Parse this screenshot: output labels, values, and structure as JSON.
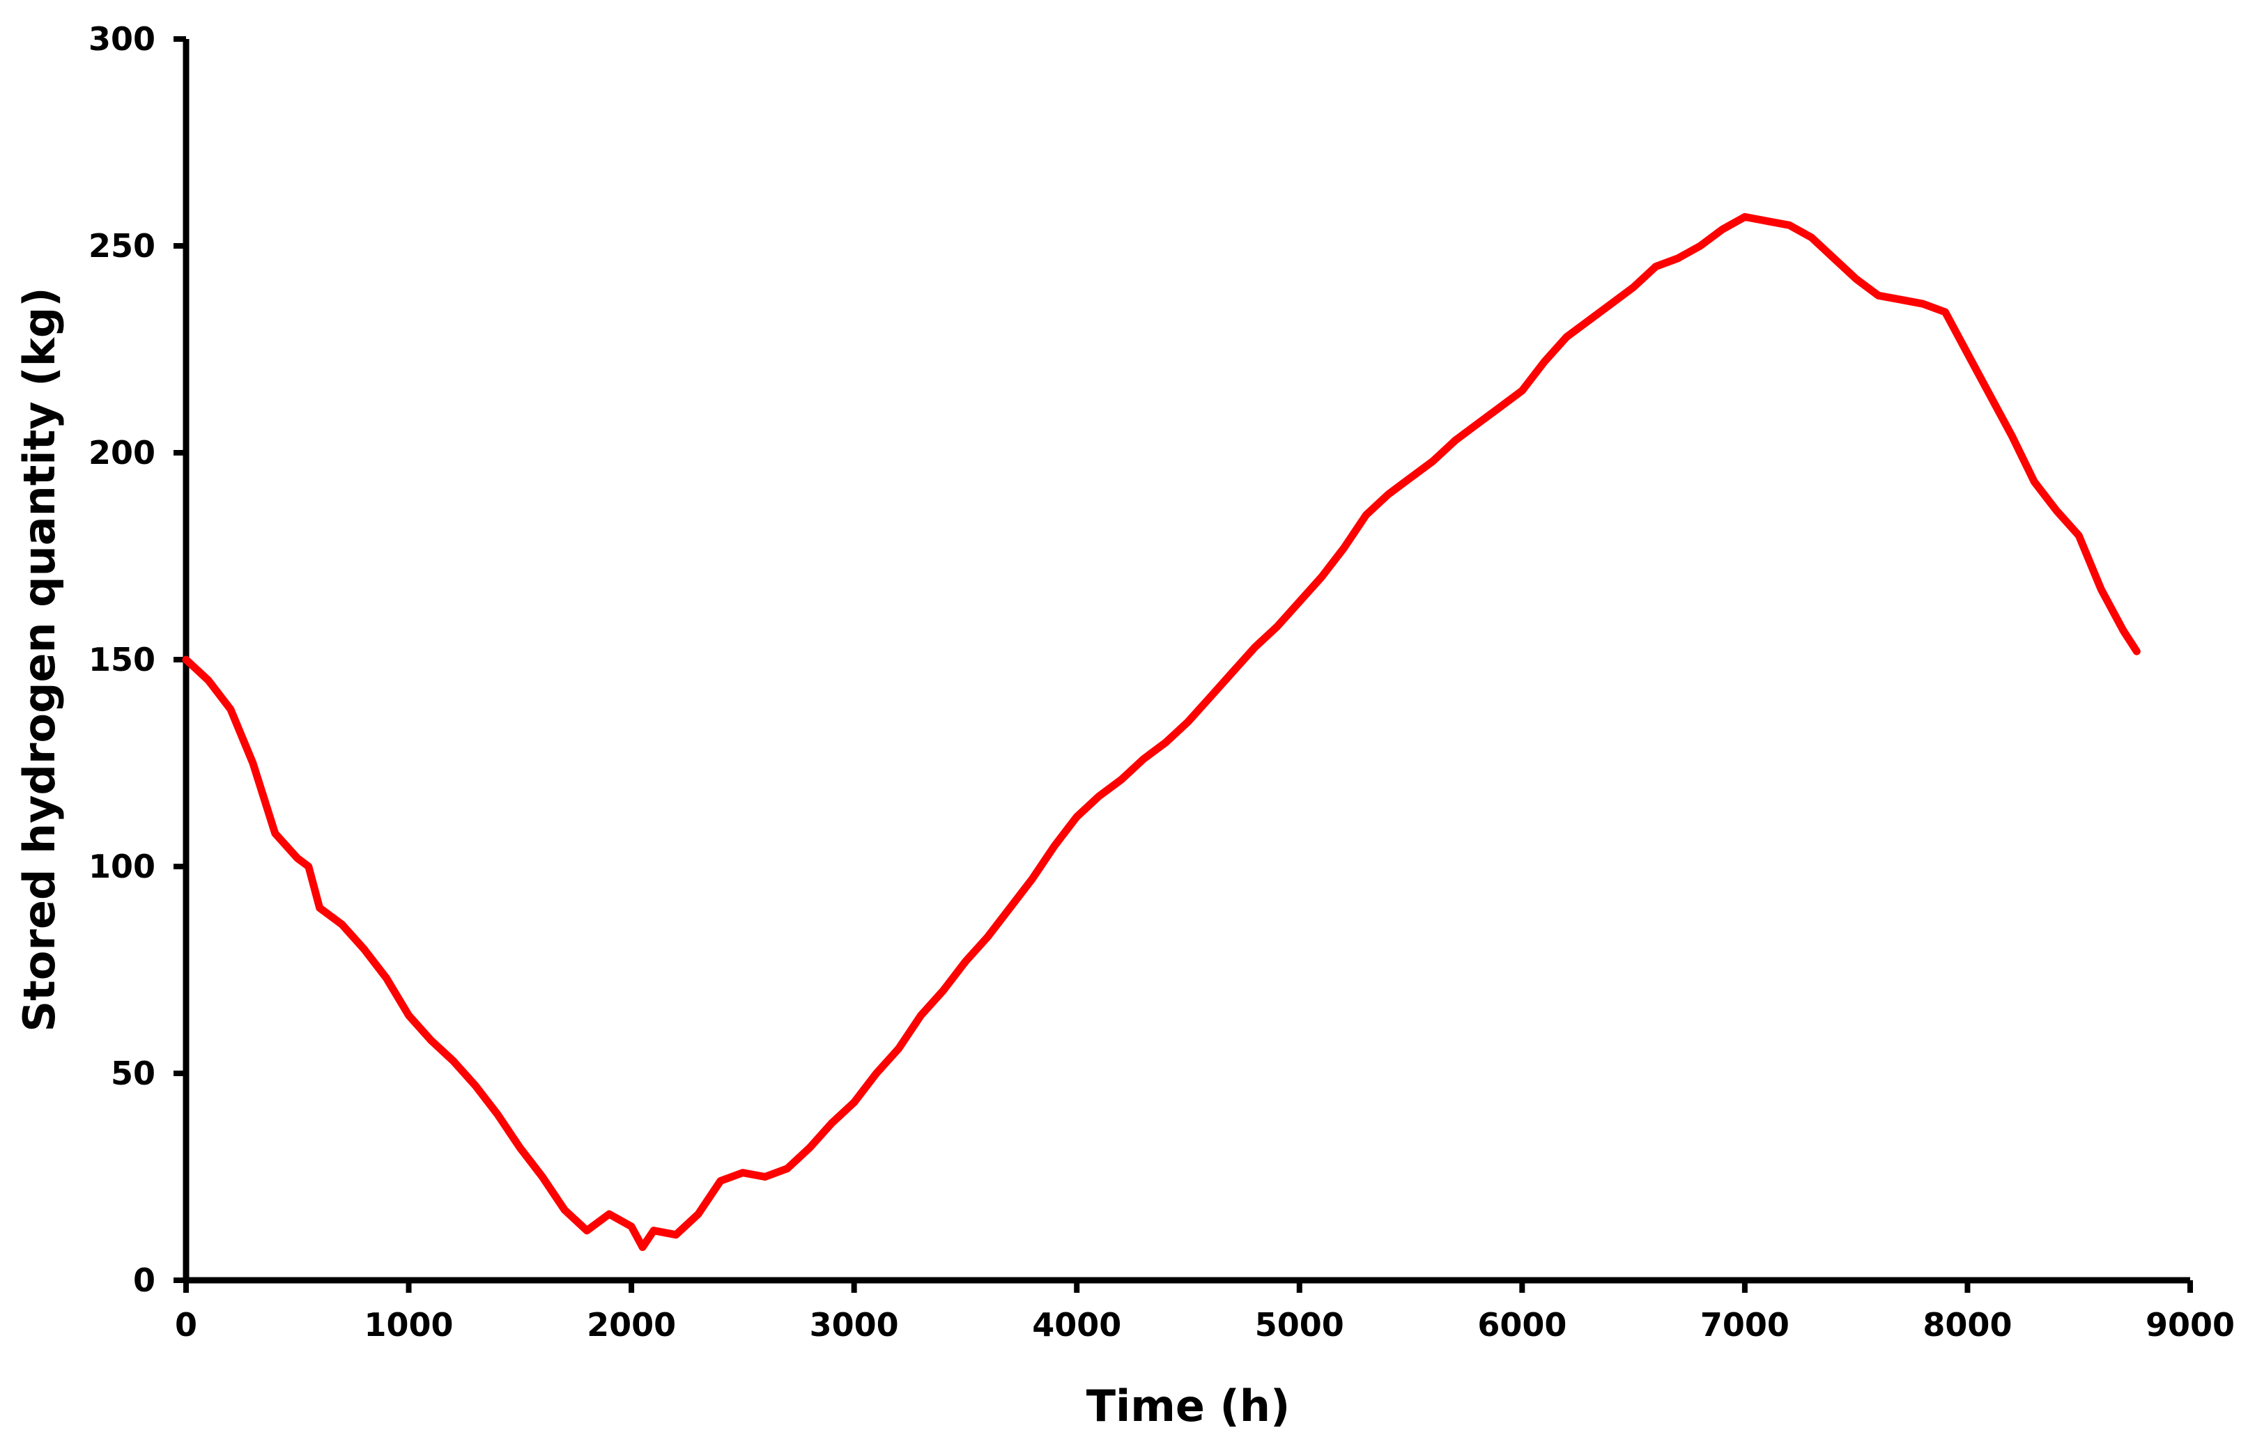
{
  "chart_data": {
    "type": "line",
    "title": "",
    "xlabel": "Time (h)",
    "ylabel": "Stored hydrogen quantity (kg)",
    "xlim": [
      0,
      9000
    ],
    "ylim": [
      0,
      300
    ],
    "x_ticks": [
      0,
      1000,
      2000,
      3000,
      4000,
      5000,
      6000,
      7000,
      8000,
      9000
    ],
    "y_ticks": [
      0,
      50,
      100,
      150,
      200,
      250,
      300
    ],
    "x_tick_labels": [
      "0",
      "1000",
      "2000",
      "3000",
      "4000",
      "5000",
      "6000",
      "7000",
      "8000",
      "9000"
    ],
    "y_tick_labels": [
      "0",
      "50",
      "100",
      "150",
      "200",
      "250",
      "300"
    ],
    "grid": false,
    "legend": "none",
    "series": [
      {
        "color": "#ff0000",
        "points": [
          [
            0,
            150
          ],
          [
            100,
            145
          ],
          [
            200,
            138
          ],
          [
            300,
            125
          ],
          [
            400,
            108
          ],
          [
            500,
            102
          ],
          [
            550,
            100
          ],
          [
            600,
            90
          ],
          [
            700,
            86
          ],
          [
            800,
            80
          ],
          [
            900,
            73
          ],
          [
            1000,
            64
          ],
          [
            1100,
            58
          ],
          [
            1200,
            53
          ],
          [
            1300,
            47
          ],
          [
            1400,
            40
          ],
          [
            1500,
            32
          ],
          [
            1600,
            25
          ],
          [
            1700,
            17
          ],
          [
            1800,
            12
          ],
          [
            1900,
            16
          ],
          [
            2000,
            13
          ],
          [
            2050,
            8
          ],
          [
            2100,
            12
          ],
          [
            2200,
            11
          ],
          [
            2300,
            16
          ],
          [
            2400,
            24
          ],
          [
            2500,
            26
          ],
          [
            2600,
            25
          ],
          [
            2700,
            27
          ],
          [
            2800,
            32
          ],
          [
            2900,
            38
          ],
          [
            3000,
            43
          ],
          [
            3100,
            50
          ],
          [
            3200,
            56
          ],
          [
            3300,
            64
          ],
          [
            3400,
            70
          ],
          [
            3500,
            77
          ],
          [
            3600,
            83
          ],
          [
            3700,
            90
          ],
          [
            3800,
            97
          ],
          [
            3900,
            105
          ],
          [
            4000,
            112
          ],
          [
            4100,
            117
          ],
          [
            4200,
            121
          ],
          [
            4300,
            126
          ],
          [
            4400,
            130
          ],
          [
            4500,
            135
          ],
          [
            4600,
            141
          ],
          [
            4700,
            147
          ],
          [
            4800,
            153
          ],
          [
            4900,
            158
          ],
          [
            5000,
            164
          ],
          [
            5100,
            170
          ],
          [
            5200,
            177
          ],
          [
            5300,
            185
          ],
          [
            5400,
            190
          ],
          [
            5500,
            194
          ],
          [
            5600,
            198
          ],
          [
            5700,
            203
          ],
          [
            5800,
            207
          ],
          [
            5900,
            211
          ],
          [
            6000,
            215
          ],
          [
            6100,
            222
          ],
          [
            6200,
            228
          ],
          [
            6300,
            232
          ],
          [
            6400,
            236
          ],
          [
            6500,
            240
          ],
          [
            6600,
            245
          ],
          [
            6700,
            247
          ],
          [
            6800,
            250
          ],
          [
            6900,
            254
          ],
          [
            7000,
            257
          ],
          [
            7100,
            256
          ],
          [
            7200,
            255
          ],
          [
            7300,
            252
          ],
          [
            7400,
            247
          ],
          [
            7500,
            242
          ],
          [
            7600,
            238
          ],
          [
            7700,
            237
          ],
          [
            7800,
            236
          ],
          [
            7900,
            234
          ],
          [
            8000,
            224
          ],
          [
            8100,
            214
          ],
          [
            8200,
            204
          ],
          [
            8300,
            193
          ],
          [
            8400,
            186
          ],
          [
            8500,
            180
          ],
          [
            8600,
            167
          ],
          [
            8700,
            157
          ],
          [
            8760,
            152
          ]
        ]
      }
    ]
  }
}
